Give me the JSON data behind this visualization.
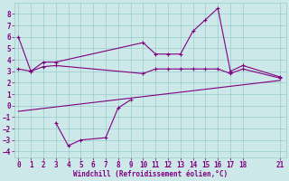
{
  "line1_x": [
    0,
    1,
    2,
    3,
    10,
    11,
    12,
    13,
    14,
    15,
    16,
    17,
    18,
    21
  ],
  "line1_y": [
    6.0,
    3.0,
    3.8,
    3.8,
    5.5,
    4.5,
    4.5,
    4.5,
    6.5,
    7.5,
    8.5,
    3.0,
    3.5,
    2.5
  ],
  "line2_x": [
    0,
    1,
    2,
    3,
    10,
    11,
    12,
    13,
    14,
    15,
    16,
    17,
    18,
    21
  ],
  "line2_y": [
    3.2,
    3.0,
    3.4,
    3.5,
    2.8,
    3.2,
    3.2,
    3.2,
    3.2,
    3.2,
    3.2,
    2.8,
    3.2,
    2.4
  ],
  "line3_x": [
    3,
    4,
    5,
    7,
    8,
    9
  ],
  "line3_y": [
    -1.5,
    -3.5,
    -3.0,
    -2.8,
    -0.2,
    0.5
  ],
  "line4_x": [
    0,
    21
  ],
  "line4_y": [
    -0.5,
    2.2
  ],
  "color": "#800080",
  "bg_color": "#cce8e8",
  "grid_color": "#99cccc",
  "xlabel": "Windchill (Refroidissement éolien,°C)",
  "xlim": [
    -0.3,
    21.5
  ],
  "ylim": [
    -4.5,
    9.0
  ],
  "xticks": [
    0,
    1,
    2,
    3,
    4,
    5,
    6,
    7,
    8,
    9,
    10,
    11,
    12,
    13,
    14,
    15,
    16,
    17,
    18,
    21
  ],
  "yticks": [
    -4,
    -3,
    -2,
    -1,
    0,
    1,
    2,
    3,
    4,
    5,
    6,
    7,
    8
  ]
}
